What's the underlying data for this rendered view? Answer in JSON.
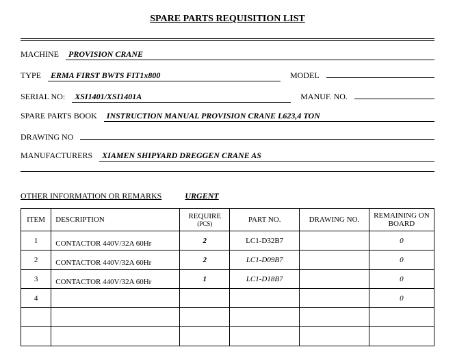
{
  "title": "SPARE PARTS REQUISITION LIST",
  "fields": {
    "machine_label": "MACHINE",
    "machine_value": "PROVISION CRANE",
    "type_label": "TYPE",
    "type_value": "ERMA FIRST BWTS FIT1x800",
    "model_label": "MODEL",
    "model_value": "",
    "serial_label": "SERIAL NO:",
    "serial_value": "XSI1401/XSI1401A",
    "manuf_label": "MANUF. NO.",
    "manuf_value": "",
    "book_label": "SPARE PARTS BOOK",
    "book_value": "INSTRUCTION MANUAL PROVISION CRANE L623,4 TON",
    "drawing_label": "DRAWING NO",
    "drawing_value": "",
    "makers_label": "MANUFACTURERS",
    "makers_value": "XIAMEN SHIPYARD  DREGGEN CRANE AS"
  },
  "remarks": {
    "label": "OTHER INFORMATION OR REMARKS",
    "value": "URGENT"
  },
  "table": {
    "headers": {
      "item": "ITEM",
      "description": "DESCRIPTION",
      "require": "REQUIRE",
      "require_sub": "(PCS)",
      "part_no": "PART NO.",
      "drawing_no": "DRAWING NO.",
      "remaining": "REMAINING ON BOARD"
    },
    "rows": [
      {
        "item": "1",
        "desc": "CONTACTOR 440V/32A 60Hr",
        "req": "2",
        "part": "LC1-D32B7",
        "draw": "",
        "rem": "0",
        "part_style": "plain"
      },
      {
        "item": "2",
        "desc": "CONTACTOR 440V/32A 60Hr",
        "req": "2",
        "part": "LC1-D09B7",
        "draw": "",
        "rem": "0",
        "part_style": "ital"
      },
      {
        "item": "3",
        "desc": "CONTACTOR 440V/32A 60Hr",
        "req": "1",
        "part": "LC1-D18B7",
        "draw": "",
        "rem": "0",
        "part_style": "ital"
      },
      {
        "item": "4",
        "desc": "",
        "req": "",
        "part": "",
        "draw": "",
        "rem": "0",
        "part_style": "ital"
      },
      {
        "item": "",
        "desc": "",
        "req": "",
        "part": "",
        "draw": "",
        "rem": "",
        "part_style": ""
      },
      {
        "item": "",
        "desc": "",
        "req": "",
        "part": "",
        "draw": "",
        "rem": "",
        "part_style": ""
      }
    ]
  },
  "styling": {
    "font_family": "Times New Roman",
    "title_fontsize": 14,
    "body_fontsize": 12,
    "table_fontsize": 11,
    "border_color": "#000000",
    "background_color": "#ffffff",
    "text_color": "#000000",
    "value_style": "bold italic underline"
  }
}
